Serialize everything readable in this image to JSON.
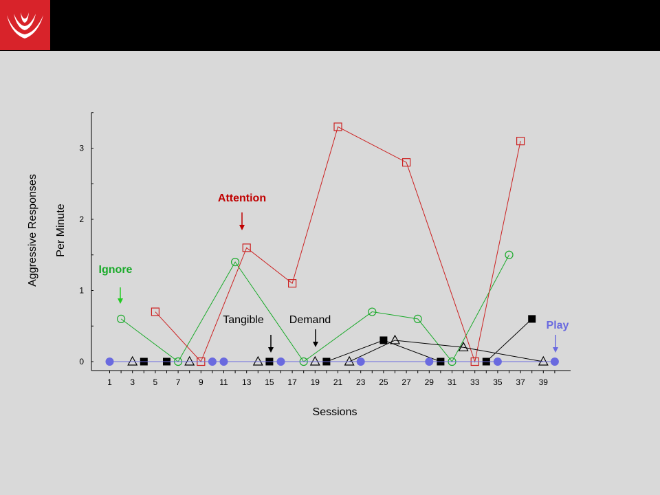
{
  "chart_data": {
    "type": "line",
    "xlabel": "Sessions",
    "ylabel_lines": [
      "Aggressive Responses",
      "Per Minute"
    ],
    "xlim": [
      0,
      41
    ],
    "ylim": [
      -0.12,
      3.5
    ],
    "xticks": [
      1,
      3,
      5,
      7,
      9,
      11,
      13,
      15,
      17,
      19,
      21,
      23,
      25,
      27,
      29,
      31,
      33,
      35,
      37,
      39
    ],
    "yticks": [
      0,
      1,
      2,
      3
    ],
    "grid": false,
    "series": [
      {
        "name": "Ignore",
        "color": "#1aaa2a",
        "marker": "circle-open",
        "points": [
          [
            2,
            0.6
          ],
          [
            7,
            0
          ],
          [
            12,
            1.4
          ],
          [
            18,
            0
          ],
          [
            24,
            0.7
          ],
          [
            28,
            0.6
          ],
          [
            31,
            0
          ],
          [
            36,
            1.5
          ]
        ]
      },
      {
        "name": "Attention",
        "color": "#cc2020",
        "marker": "square-open",
        "points": [
          [
            5,
            0.7
          ],
          [
            9,
            0
          ],
          [
            13,
            1.6
          ],
          [
            17,
            1.1
          ],
          [
            21,
            3.3
          ],
          [
            27,
            2.8
          ],
          [
            33,
            0
          ],
          [
            37,
            3.1
          ]
        ]
      },
      {
        "name": "Tangible",
        "color": "#000000",
        "marker": "square-filled",
        "points": [
          [
            4,
            0
          ],
          [
            6,
            0
          ],
          [
            15,
            0
          ],
          [
            20,
            0
          ],
          [
            25,
            0.3
          ],
          [
            30,
            0
          ],
          [
            34,
            0
          ],
          [
            38,
            0.6
          ]
        ]
      },
      {
        "name": "Demand",
        "color": "#000000",
        "marker": "triangle-open",
        "points": [
          [
            3,
            0
          ],
          [
            8,
            0
          ],
          [
            14,
            0
          ],
          [
            19,
            0
          ],
          [
            22,
            0
          ],
          [
            26,
            0.3
          ],
          [
            32,
            0.2
          ],
          [
            39,
            0
          ]
        ]
      },
      {
        "name": "Play",
        "color": "#6a6adf",
        "marker": "circle-filled",
        "points": [
          [
            1,
            0
          ],
          [
            10,
            0
          ],
          [
            11,
            0
          ],
          [
            16,
            0
          ],
          [
            23,
            0
          ],
          [
            29,
            0
          ],
          [
            35,
            0
          ],
          [
            40,
            0
          ]
        ]
      }
    ],
    "annotations": [
      {
        "id": "ignore",
        "text": "Ignore",
        "color": "#1aaa2a",
        "bold": true
      },
      {
        "id": "attention",
        "text": "Attention",
        "color": "#c00000",
        "bold": true
      },
      {
        "id": "tangible",
        "text": "Tangible",
        "color": "#000000",
        "bold": false
      },
      {
        "id": "demand",
        "text": "Demand",
        "color": "#000000",
        "bold": false
      },
      {
        "id": "play",
        "text": "Play",
        "color": "#6a6adf",
        "bold": true
      }
    ]
  }
}
